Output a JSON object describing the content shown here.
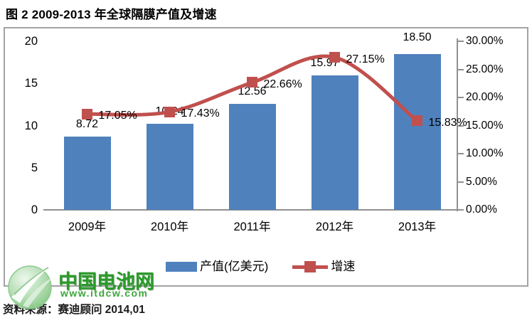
{
  "page": {
    "title": "图 2 2009-2013 年全球隔膜产值及增速",
    "source_note": "资料来源：赛迪顾问 2014,01"
  },
  "watermark": {
    "name": "中国电池网",
    "url": "www.itdcw.com"
  },
  "colors": {
    "bar": "#4F81BD",
    "line": "#C0504D",
    "axis": "#909090",
    "frame_border": "#A3A3A3",
    "watermark_green": "#2A9B2A",
    "watermark_url_green": "#3DA53D",
    "text": "#000000"
  },
  "chart_data": {
    "type": "bar+line",
    "title": "图 2 2009-2013 年全球隔膜产值及增速",
    "categories": [
      "2009年",
      "2010年",
      "2011年",
      "2012年",
      "2013年"
    ],
    "series": [
      {
        "name": "产值(亿美元)",
        "type": "bar",
        "axis": "left",
        "color": "#4F81BD",
        "values": [
          8.72,
          10.24,
          12.56,
          15.97,
          18.5
        ],
        "labels": [
          "8.72",
          "10.24",
          "12.56",
          "15.97",
          "18.50"
        ]
      },
      {
        "name": "增速",
        "type": "line",
        "axis": "right",
        "color": "#C0504D",
        "values": [
          17.05,
          17.43,
          22.66,
          27.15,
          15.83
        ],
        "labels": [
          "17.05%",
          "17.43%",
          "22.66%",
          "27.15%",
          "15.83%"
        ]
      }
    ],
    "left_axis": {
      "min": 0,
      "max": 20,
      "ticks": [
        "0",
        "5",
        "10",
        "15",
        "20"
      ]
    },
    "right_axis": {
      "min": 0,
      "max": 30,
      "ticks": [
        "0.00%",
        "5.00%",
        "10.00%",
        "15.00%",
        "20.00%",
        "25.00%",
        "30.00%"
      ]
    },
    "grid": false,
    "legend_position": "bottom"
  }
}
